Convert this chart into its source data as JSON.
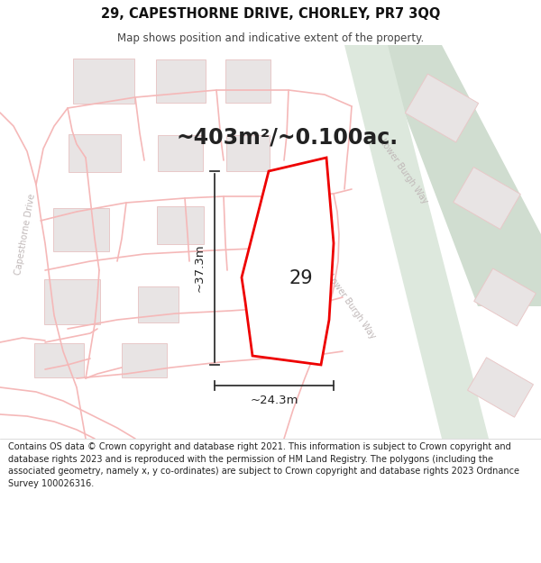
{
  "title_line1": "29, CAPESTHORNE DRIVE, CHORLEY, PR7 3QQ",
  "title_line2": "Map shows position and indicative extent of the property.",
  "area_text": "~403m²/~0.100ac.",
  "number_label": "29",
  "dim_vertical": "~37.3m",
  "dim_horizontal": "~24.3m",
  "footer_text": "Contains OS data © Crown copyright and database right 2021. This information is subject to Crown copyright and database rights 2023 and is reproduced with the permission of HM Land Registry. The polygons (including the associated geometry, namely x, y co-ordinates) are subject to Crown copyright and database rights 2023 Ordnance Survey 100026316.",
  "map_bg": "#f8f4f4",
  "road_color": "#f5b8b8",
  "building_fill": "#e8e4e4",
  "building_edge": "#e8c8c8",
  "green_strip1": "#d0ddd0",
  "green_strip2": "#dde8dd",
  "highlight_fill": "#ffffff",
  "highlight_edge": "#ee0000",
  "road_label_color": "#c0b8b8",
  "annotation_color": "#222222",
  "footer_bg": "#f2f2f2",
  "title_bg": "#ffffff",
  "title_fontsize": 10.5,
  "subtitle_fontsize": 8.5,
  "area_fontsize": 17,
  "number_fontsize": 15,
  "dim_fontsize": 9.5,
  "footer_fontsize": 7.0,
  "road_label_fontsize": 7.0
}
